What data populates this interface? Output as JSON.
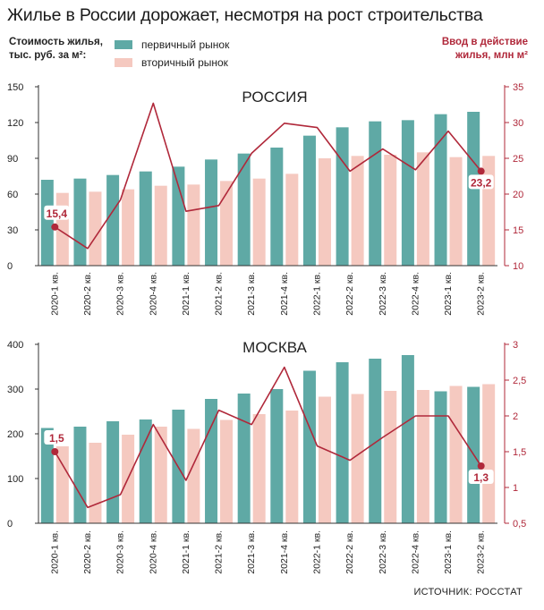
{
  "title": "Жилье в России дорожает, несмотря на рост строительства",
  "left_axis_title_line1": "Стоимость жилья,",
  "left_axis_title_line2": "тыс. руб. за м²:",
  "right_axis_title_line1": "Ввод в действие",
  "right_axis_title_line2": "жилья, млн м²",
  "legend": {
    "primary": "первичный рынок",
    "secondary": "вторичный рынок"
  },
  "source": "ИСТОЧНИК: РОССТАТ",
  "colors": {
    "primary": "#5fa9a5",
    "secondary": "#f5c9c0",
    "line": "#b0283a",
    "axis": "#333333"
  },
  "chart_data": [
    {
      "type": "bar",
      "title": "РОССИЯ",
      "categories": [
        "2020-1 кв.",
        "2020-2 кв.",
        "2020-3 кв.",
        "2020-4 кв.",
        "2021-1 кв.",
        "2021-2 кв.",
        "2021-3 кв.",
        "2021-4 кв.",
        "2022-1 кв.",
        "2022-2 кв.",
        "2022-3 кв.",
        "2022-4 кв.",
        "2023-1 кв.",
        "2023-2 кв."
      ],
      "series": [
        {
          "name": "первичный рынок",
          "kind": "bar",
          "axis": "left",
          "values": [
            72,
            73,
            76,
            79,
            83,
            89,
            94,
            99,
            109,
            116,
            121,
            122,
            127,
            129
          ]
        },
        {
          "name": "вторичный рынок",
          "kind": "bar",
          "axis": "left",
          "values": [
            61,
            62,
            64,
            67,
            68,
            71,
            73,
            77,
            90,
            92,
            93,
            95,
            91,
            92
          ]
        },
        {
          "name": "Ввод в действие жилья, млн м²",
          "kind": "line",
          "axis": "right",
          "values": [
            15.4,
            12.4,
            19.2,
            32.7,
            17.6,
            18.4,
            25.7,
            29.9,
            29.3,
            23.2,
            26.3,
            23.4,
            28.8,
            23.2
          ]
        }
      ],
      "yleft_ticks": [
        "0",
        "30",
        "60",
        "90",
        "120",
        "150"
      ],
      "yleft_lim": [
        0,
        150
      ],
      "yright_ticks": [
        "10",
        "15",
        "20",
        "25",
        "30",
        "35"
      ],
      "yright_lim": [
        10,
        35
      ],
      "annotations": [
        {
          "index": 0,
          "label": "15,4"
        },
        {
          "index": 13,
          "label": "23,2"
        }
      ]
    },
    {
      "type": "bar",
      "title": "МОСКВА",
      "categories": [
        "2020-1 кв.",
        "2020-2 кв.",
        "2020-3 кв.",
        "2020-4 кв.",
        "2021-1 кв.",
        "2021-2 кв.",
        "2021-3 кв.",
        "2021-4 кв.",
        "2022-1 кв.",
        "2022-2 кв.",
        "2022-3 кв.",
        "2022-4 кв.",
        "2023-1 кв.",
        "2023-2 кв."
      ],
      "series": [
        {
          "name": "первичный рынок",
          "kind": "bar",
          "axis": "left",
          "values": [
            213,
            216,
            228,
            232,
            254,
            278,
            290,
            300,
            341,
            360,
            368,
            376,
            295,
            305
          ]
        },
        {
          "name": "вторичный рынок",
          "kind": "bar",
          "axis": "left",
          "values": [
            172,
            180,
            198,
            216,
            211,
            231,
            244,
            252,
            283,
            289,
            296,
            298,
            307,
            311
          ]
        },
        {
          "name": "Ввод в действие жилья, млн м²",
          "kind": "line",
          "axis": "right",
          "values": [
            1.5,
            0.72,
            0.9,
            1.88,
            1.1,
            2.08,
            1.88,
            2.68,
            1.58,
            1.38,
            1.7,
            2.0,
            2.0,
            1.3
          ]
        }
      ],
      "yleft_ticks": [
        "0",
        "100",
        "200",
        "300",
        "400"
      ],
      "yleft_lim": [
        0,
        400
      ],
      "yright_ticks": [
        "0,5",
        "1",
        "1,5",
        "2",
        "2,5",
        "3"
      ],
      "yright_lim": [
        0.5,
        3
      ],
      "annotations": [
        {
          "index": 0,
          "label": "1,5"
        },
        {
          "index": 13,
          "label": "1,3"
        }
      ]
    }
  ]
}
